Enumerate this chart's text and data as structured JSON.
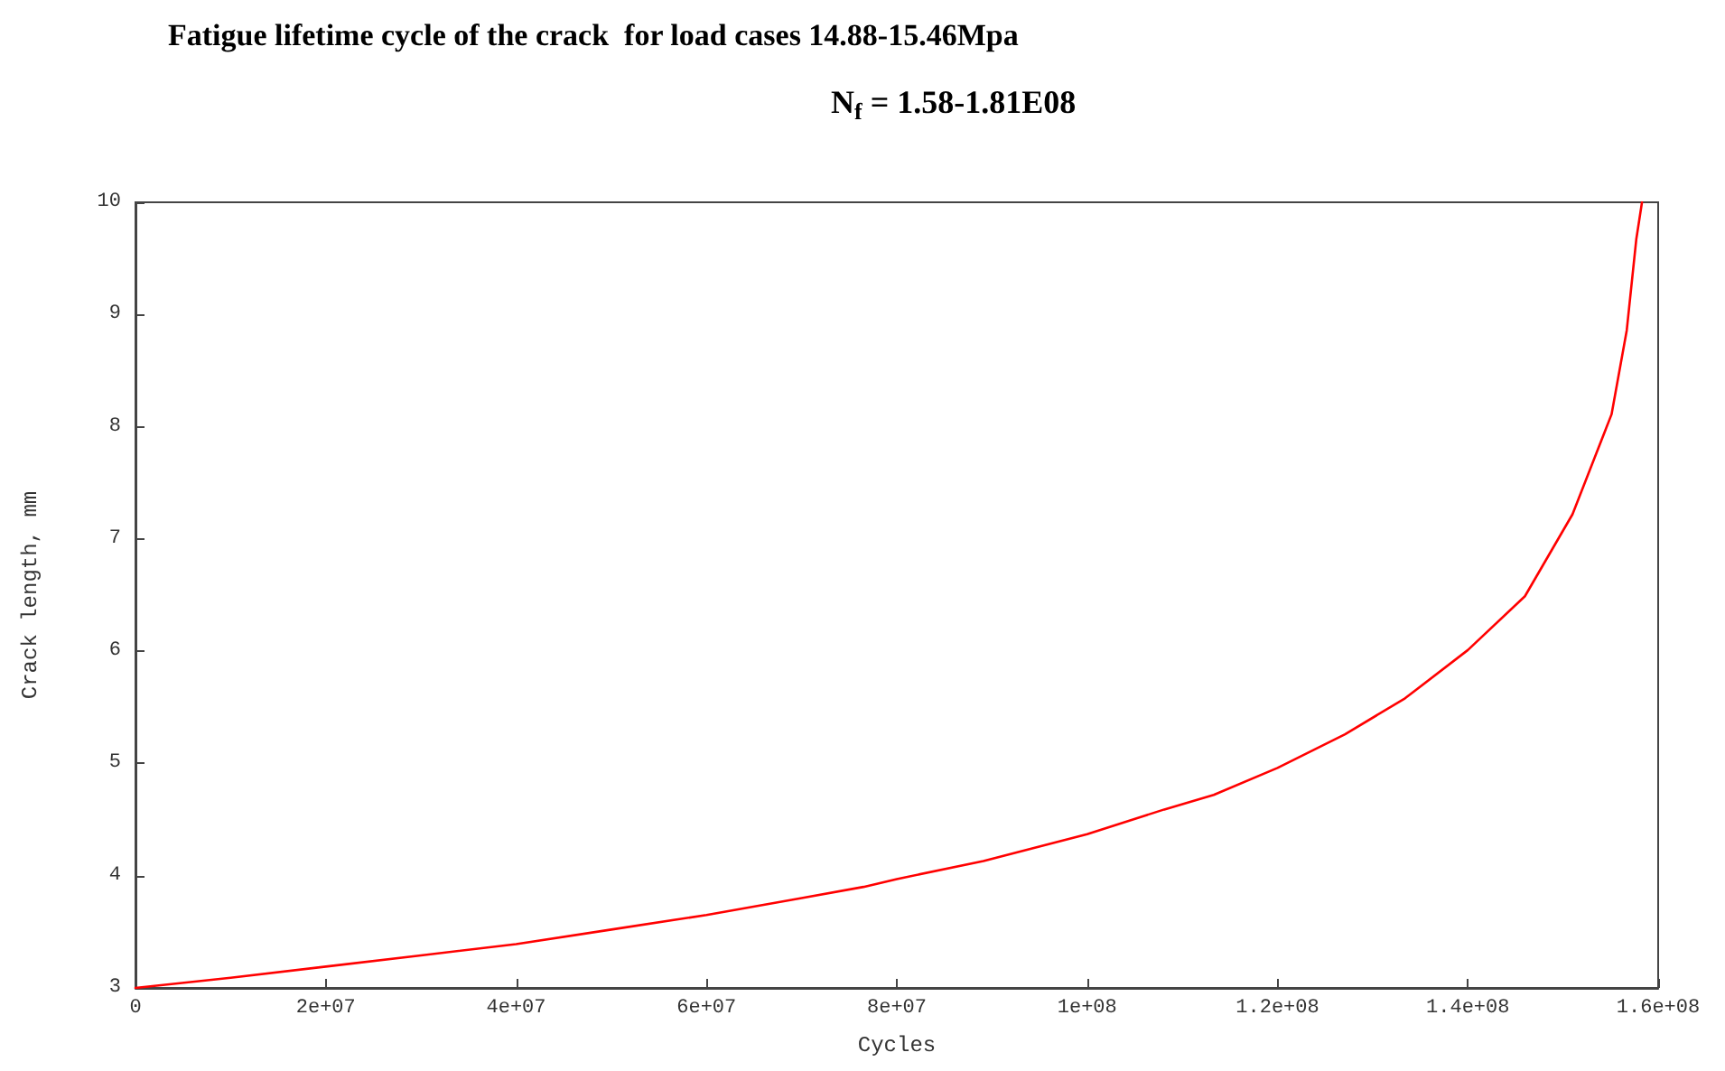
{
  "chart_data": {
    "type": "line",
    "title": "Fatigue lifetime cycle of the crack  for load cases 14.88-15.46Mpa",
    "subtitle": "N$_{f}$ = 1.58-1.81E08",
    "xlabel": "Cycles",
    "ylabel": "Crack length, mm",
    "series": [
      {
        "color": "#ff0000",
        "x": [
          0,
          10000000,
          20000000,
          30000000,
          40000000,
          50000000,
          60000000,
          70000000,
          76500000,
          80000000,
          89100000,
          100000000,
          108100000,
          113300000,
          120000000,
          127100000,
          133400000,
          140000000,
          146000000,
          151000000,
          155100000,
          156700000,
          157700000,
          158300000
        ],
        "values": [
          3.0,
          3.09,
          3.19,
          3.29,
          3.39,
          3.52,
          3.65,
          3.8,
          3.9,
          3.97,
          4.13,
          4.37,
          4.59,
          4.72,
          4.96,
          5.26,
          5.58,
          6.01,
          6.49,
          7.22,
          8.11,
          8.86,
          9.67,
          10.0
        ]
      }
    ],
    "xlim": [
      0,
      160000000
    ],
    "ylim": [
      3,
      10
    ],
    "xticks": [
      0,
      {
        "value": 20000000,
        "label": "2e+07"
      },
      {
        "value": 40000000,
        "label": "4e+07"
      },
      {
        "value": 60000000,
        "label": "6e+07"
      },
      {
        "value": 80000000,
        "label": "8e+07"
      },
      {
        "value": 100000000,
        "label": "1e+08"
      },
      {
        "value": 120000000,
        "label": "1.2e+08"
      },
      {
        "value": 140000000,
        "label": "1.4e+08"
      },
      {
        "value": 160000000,
        "label": "1.6e+08"
      }
    ],
    "yticks": [
      3,
      4,
      5,
      6,
      7,
      8,
      9,
      10
    ],
    "grid": false,
    "marker": "none",
    "line_style": "solid"
  }
}
